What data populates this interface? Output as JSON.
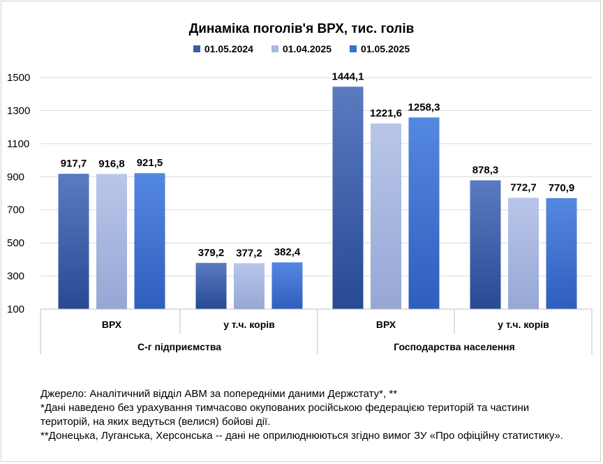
{
  "chart_data": {
    "type": "bar",
    "title": "Динаміка поголів'я ВРХ, тис. голів",
    "categories": [
      "ВРХ",
      "у т.ч. корів",
      "ВРХ",
      "у т.ч. корів"
    ],
    "groups": [
      {
        "label": "С-г підприємства",
        "categories": [
          "ВРХ",
          "у т.ч. корів"
        ]
      },
      {
        "label": "Господарства населення",
        "categories": [
          "ВРХ",
          "у т.ч. корів"
        ]
      }
    ],
    "series": [
      {
        "name": "01.05.2024",
        "values": [
          917.7,
          379.2,
          1444.1,
          878.3
        ],
        "labels": [
          "917,7",
          "379,2",
          "1444,1",
          "878,3"
        ],
        "color": "#3a5fa8"
      },
      {
        "name": "01.04.2025",
        "values": [
          916.8,
          377.2,
          1221.6,
          772.7
        ],
        "labels": [
          "916,8",
          "377,2",
          "1221,6",
          "772,7"
        ],
        "color": "#a9b8e0"
      },
      {
        "name": "01.05.2025",
        "values": [
          921.5,
          382.4,
          1258.3,
          770.9
        ],
        "labels": [
          "921,5",
          "382,4",
          "1258,3",
          "770,9"
        ],
        "color": "#3b6fd1"
      }
    ],
    "yticks": [
      100,
      300,
      500,
      700,
      900,
      1100,
      1300,
      1500
    ],
    "ylim": [
      100,
      1500
    ],
    "grid": true,
    "legend": "top-center"
  },
  "notes": {
    "line1": "Джерело: Аналітичний відділ АВМ за попередніми даними Держстату*, **",
    "line2": "*Дані наведено без урахування тимчасово окупованих російською федерацією територій та частини",
    "line3": "територій, на яких ведуться (велися) бойові дії.",
    "line4": "**Донецька, Луганська, Херсонська -- дані не оприлюднюються згідно вимог ЗУ «Про офіційну статистику»."
  }
}
